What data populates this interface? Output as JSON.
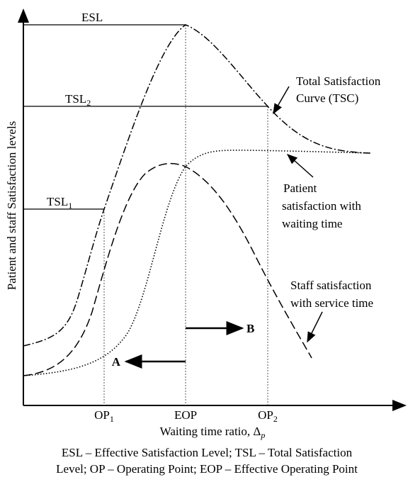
{
  "levels": {
    "esl": "ESL",
    "tsl2": {
      "text": "TSL",
      "sub": "2"
    },
    "tsl1": {
      "text": "TSL",
      "sub": "1"
    }
  },
  "y_axis_label": "Patient and staff Satisfaction levels",
  "x_axis_label": {
    "text": "Waiting time ratio, Δ",
    "sub": "p"
  },
  "x_points": [
    {
      "text": "OP",
      "sub": "1"
    },
    {
      "text": "EOP"
    },
    {
      "text": "OP",
      "sub": "2"
    }
  ],
  "arrows": {
    "a": "A",
    "b": "B"
  },
  "annotations": {
    "tsc": [
      "Total Satisfaction",
      "Curve (TSC)"
    ],
    "patient": [
      "Patient",
      "satisfaction with",
      "waiting time"
    ],
    "staff": [
      "Staff satisfaction",
      "with service time"
    ]
  },
  "caption": [
    "ESL – Effective Satisfaction Level; TSL – Total Satisfaction",
    "Level; OP – Operating Point; EOP – Effective Operating Point"
  ]
}
